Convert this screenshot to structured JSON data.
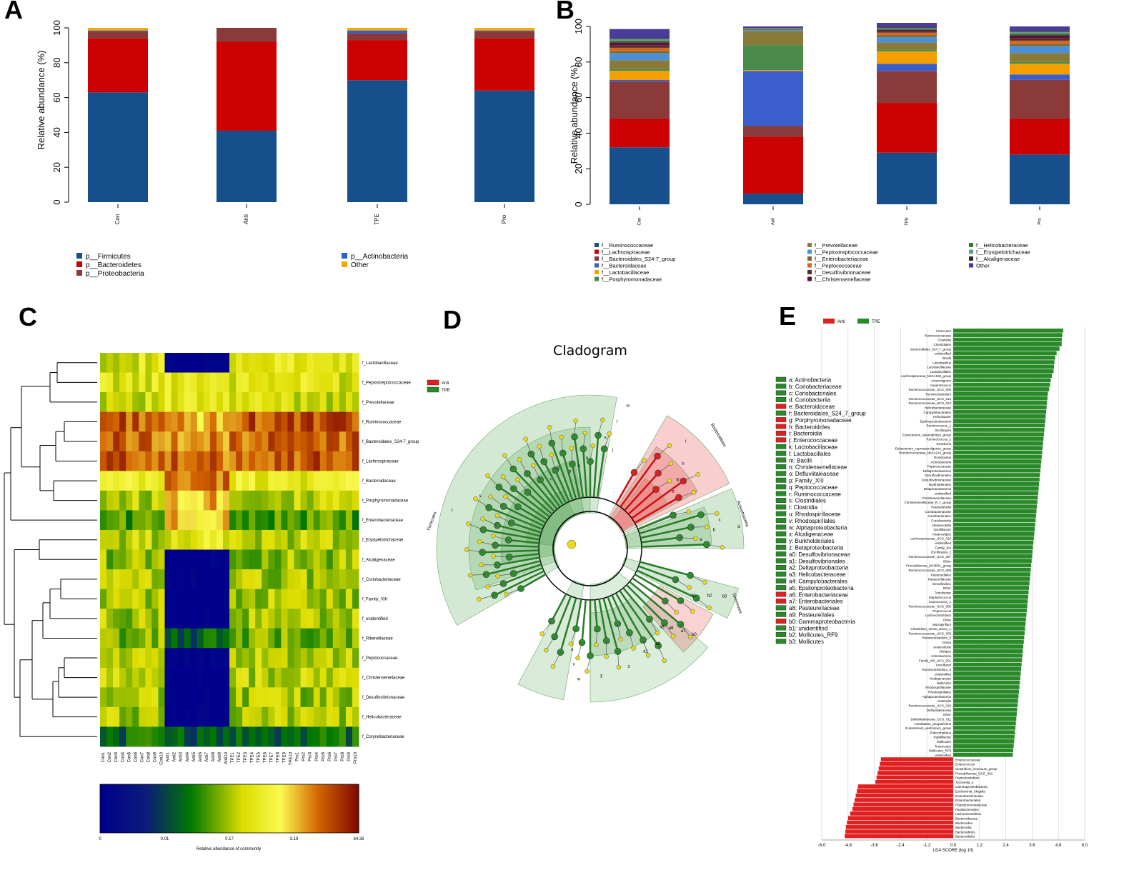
{
  "colors": {
    "Firmicutes": "#174f8c",
    "Bacteroidetes": "#cc0000",
    "Proteobacteria": "#8b3a3a",
    "Actinobacteria": "#2e5fd1",
    "Other": "#f5a800",
    "anti": "#e02020",
    "tpe": "#2a8a2a"
  },
  "chart_data": [
    {
      "id": "A",
      "panel_label": "A",
      "type": "bar",
      "stacked": true,
      "ylabel": "Relative abundance (%)",
      "ylim": [
        0,
        100
      ],
      "yticks": [
        "0",
        "20",
        "40",
        "60",
        "80",
        "100"
      ],
      "categories": [
        "Con",
        "Anti",
        "TPE",
        "Pro"
      ],
      "series": [
        {
          "name": "p__Firmicutes",
          "color": "#174f8c",
          "values": [
            63,
            41,
            70,
            64
          ]
        },
        {
          "name": "p__Bacteroidetes",
          "color": "#cc0000",
          "values": [
            31,
            51,
            23,
            30
          ]
        },
        {
          "name": "p__Proteobacteria",
          "color": "#8b3a3a",
          "values": [
            4,
            8,
            4,
            4
          ]
        },
        {
          "name": "p__Actinobacteria",
          "color": "#2e5fd1",
          "values": [
            0.5,
            0,
            1.5,
            0.5
          ]
        },
        {
          "name": "Other",
          "color": "#f5a800",
          "values": [
            1.5,
            0,
            1.5,
            1.5
          ]
        }
      ],
      "legend_left": [
        "p__Firmicutes",
        "p__Bacteroidetes",
        "p__Proteobacteria"
      ],
      "legend_right": [
        "p__Actinobacteria",
        "Other"
      ]
    },
    {
      "id": "B",
      "panel_label": "B",
      "type": "bar",
      "stacked": true,
      "ylabel": "Relative abundance (%)",
      "ylim": [
        0,
        100
      ],
      "yticks": [
        "0",
        "20",
        "40",
        "60",
        "80",
        "100"
      ],
      "categories": [
        "Con",
        "Anti",
        "TPE",
        "Pro"
      ],
      "series": [
        {
          "name": "f__Ruminococcaceae",
          "color": "#174f8c",
          "values": [
            32,
            6,
            29,
            28
          ]
        },
        {
          "name": "f__Lachnospiraceae",
          "color": "#cc0000",
          "values": [
            16,
            32,
            28,
            20
          ]
        },
        {
          "name": "f__Bacteroidales_S24-7_group",
          "color": "#8b3a3a",
          "values": [
            21,
            6,
            18,
            22
          ]
        },
        {
          "name": "f__Bacteroidaceae",
          "color": "#3a5fcd",
          "values": [
            1,
            31,
            4,
            3
          ]
        },
        {
          "name": "f__Lactobacillaceae",
          "color": "#f5a000",
          "values": [
            5,
            0.5,
            7,
            6
          ]
        },
        {
          "name": "f__Porphyromonadaceae",
          "color": "#4a8a4a",
          "values": [
            1,
            14,
            1,
            1
          ]
        },
        {
          "name": "f__Prevotellaceae",
          "color": "#8a7a3a",
          "values": [
            5,
            8,
            4,
            5
          ]
        },
        {
          "name": "f__Peptostreptococcaceae",
          "color": "#4a90d9",
          "values": [
            4,
            0.5,
            3,
            4
          ]
        },
        {
          "name": "f__Enterobacteriaceae",
          "color": "#7a6a2a",
          "values": [
            1,
            0.5,
            1,
            1
          ]
        },
        {
          "name": "f__Peptococcaceae",
          "color": "#d2691e",
          "values": [
            2,
            0,
            1.5,
            2
          ]
        },
        {
          "name": "f__Desulfovibrionaceae",
          "color": "#5a2a2a",
          "values": [
            1.5,
            0,
            1,
            1.5
          ]
        },
        {
          "name": "f__Christensenellaceae",
          "color": "#5a1040",
          "values": [
            1.5,
            0,
            0.5,
            1.5
          ]
        },
        {
          "name": "f__Helicobacteraceae",
          "color": "#3a7a2a",
          "values": [
            1,
            0,
            0.5,
            1
          ]
        },
        {
          "name": "f__Erysipelotrichaceae",
          "color": "#6a9a8a",
          "values": [
            1,
            0.5,
            0.5,
            1
          ]
        },
        {
          "name": "f__Alcaligenaceae",
          "color": "#2a2a2a",
          "values": [
            0.5,
            0,
            0.5,
            0.5
          ]
        },
        {
          "name": "Other",
          "color": "#4a3a9a",
          "values": [
            5,
            1,
            2.5,
            2.5
          ]
        }
      ],
      "legend_col1": [
        "f__Ruminococcaceae",
        "f__Lachnospiraceae",
        "f__Bacteroidales_S24-7_group",
        "f__Bacteroidaceae",
        "f__Lactobacillaceae",
        "f__Porphyromonadaceae"
      ],
      "legend_col2": [
        "f__Prevotellaceae",
        "f__Peptostreptococcaceae",
        "f__Enterobacteriaceae",
        "f__Peptococcaceae",
        "f__Desulfovibrionaceae",
        "f__Christensenellaceae"
      ],
      "legend_col3": [
        "f__Helicobacteraceae",
        "f__Erysipelotrichaceae",
        "f__Alcaligenaceae",
        "Other"
      ]
    },
    {
      "id": "C",
      "panel_label": "C",
      "type": "heatmap",
      "rows": [
        "f_Lactobacillaceae",
        "f_Peptostreptococcaceae",
        "f_Prevotellaceae",
        "f_Ruminococcaceae",
        "f_Bacteroidales_S24-7_group",
        "f_Lachnospiraceae",
        "f_Bacteroidaceae",
        "f_Porphyromonadaceae",
        "f_Enterobacteriaceae",
        "f_Erysipelotrichaceae",
        "f_Alcaligenaceae",
        "f_Coriobacteriaceae",
        "f_Family_XIII",
        "f_unidentified",
        "f_Rikenellaceae",
        "f_Peptococcaceae",
        "f_Christensenellaceae",
        "f_Desulfovibrionaceae",
        "f_Helicobacteraceae",
        "f_Corynebacteriaceae"
      ],
      "columns": [
        "Con1",
        "Con2",
        "Con3",
        "Con4",
        "Con5",
        "Con6",
        "Con7",
        "Con8",
        "Con9",
        "Con10",
        "Anti1",
        "Anti2",
        "Anti3",
        "Anti4",
        "Anti5",
        "Anti6",
        "Anti7",
        "Anti8",
        "Anti9",
        "Anti10",
        "TPE1",
        "TPE2",
        "TPE3",
        "TPE4",
        "TPE5",
        "TPE6",
        "TPE7",
        "TPE8",
        "TPE9",
        "TPE10",
        "Pro1",
        "Pro2",
        "Pro3",
        "Pro4",
        "Pro5",
        "Pro6",
        "Pro7",
        "Pro8",
        "Pro9",
        "Pro10"
      ],
      "row_base": [
        0.58,
        0.58,
        0.56,
        0.88,
        0.86,
        0.88,
        0.62,
        0.52,
        0.42,
        0.52,
        0.48,
        0.5,
        0.5,
        0.5,
        0.46,
        0.52,
        0.52,
        0.5,
        0.5,
        0.32
      ],
      "anti_base": [
        0.0,
        0.62,
        0.58,
        0.76,
        0.8,
        0.84,
        0.84,
        0.78,
        0.74,
        0.6,
        0.0,
        0.0,
        0.0,
        0.0,
        0.3,
        0.0,
        0.0,
        0.0,
        0.0,
        0.3
      ],
      "colorbar_ticks": [
        "0",
        "0.01",
        "0.17",
        "3.19",
        "64.36"
      ],
      "colorbar_label": "Relative abundance of community"
    },
    {
      "id": "D",
      "panel_label": "D",
      "type": "table",
      "title": "Cladogram",
      "legend": [
        "Anti",
        "TPE"
      ],
      "ring_labels": [
        "Bacteroidetes",
        "Actinobacteria",
        "Tenericutes",
        "Firmicutes"
      ],
      "clade_labels": [
        "i",
        "h",
        "g",
        "e",
        "d",
        "c",
        "b",
        "a",
        "b3",
        "b2",
        "b1",
        "b0",
        "a7",
        "a6",
        "a5",
        "a2",
        "a1",
        "z",
        "y",
        "w",
        "v",
        "u",
        "m",
        "l",
        "k",
        "j",
        "n",
        "o",
        "p",
        "q",
        "r",
        "s",
        "t"
      ],
      "entries": [
        {
          "label": "a: Actinobacteria",
          "group": "TPE"
        },
        {
          "label": "b: Coriobacteriaceae",
          "group": "TPE"
        },
        {
          "label": "c: Coriobacteriales",
          "group": "TPE"
        },
        {
          "label": "d: Coriobacteriia",
          "group": "TPE"
        },
        {
          "label": "e: Bacteroidaceae",
          "group": "Anti"
        },
        {
          "label": "f: Bacteroidales_S24_7_group",
          "group": "TPE"
        },
        {
          "label": "g: Porphyromonadaceae",
          "group": "Anti"
        },
        {
          "label": "h: Bacteroidales",
          "group": "Anti"
        },
        {
          "label": "i: Bacteroidia",
          "group": "Anti"
        },
        {
          "label": "j: Enterococcaceae",
          "group": "Anti"
        },
        {
          "label": "k: Lactobacillaceae",
          "group": "TPE"
        },
        {
          "label": "l: Lactobacillales",
          "group": "TPE"
        },
        {
          "label": "m: Bacilli",
          "group": "TPE"
        },
        {
          "label": "n: Christensenellaceae",
          "group": "TPE"
        },
        {
          "label": "o: Defluviitaleaceae",
          "group": "TPE"
        },
        {
          "label": "p: Family_XIII",
          "group": "TPE"
        },
        {
          "label": "q: Peptococcaceae",
          "group": "TPE"
        },
        {
          "label": "r: Ruminococcaceae",
          "group": "TPE"
        },
        {
          "label": "s: Clostridiales",
          "group": "TPE"
        },
        {
          "label": "t: Clostridia",
          "group": "TPE"
        },
        {
          "label": "u: Rhodospirillaceae",
          "group": "TPE"
        },
        {
          "label": "v: Rhodospirillales",
          "group": "TPE"
        },
        {
          "label": "w: Alphaproteobacteria",
          "group": "TPE"
        },
        {
          "label": "x: Alcaligenaceae",
          "group": "TPE"
        },
        {
          "label": "y: Burkholderiales",
          "group": "TPE"
        },
        {
          "label": "z: Betaproteobacteria",
          "group": "TPE"
        },
        {
          "label": "a0: Desulfovibrionaceae",
          "group": "TPE"
        },
        {
          "label": "a1: Desulfovibrionales",
          "group": "TPE"
        },
        {
          "label": "a2: Deltaproteobacteria",
          "group": "TPE"
        },
        {
          "label": "a3: Helicobacteraceae",
          "group": "TPE"
        },
        {
          "label": "a4: Campylobacterales",
          "group": "TPE"
        },
        {
          "label": "a5: Epsilonproteobacteria",
          "group": "TPE"
        },
        {
          "label": "a6: Enterobacteriaceae",
          "group": "Anti"
        },
        {
          "label": "a7: Enterobacteriales",
          "group": "Anti"
        },
        {
          "label": "a8: Pasteurellaceae",
          "group": "TPE"
        },
        {
          "label": "a9: Pasteurellales",
          "group": "TPE"
        },
        {
          "label": "b0: Gammaproteobacteria",
          "group": "Anti"
        },
        {
          "label": "b1: unidentified",
          "group": "TPE"
        },
        {
          "label": "b2: Mollicutes_RF9",
          "group": "TPE"
        },
        {
          "label": "b3: Mollicutes",
          "group": "TPE"
        }
      ]
    },
    {
      "id": "E",
      "panel_label": "E",
      "type": "bar",
      "orientation": "horizontal",
      "xlabel": "LDA SCORE (log 10)",
      "xlim": [
        -6.0,
        6.0
      ],
      "xticks": [
        "-6.0",
        "-4.8",
        "-3.6",
        "-2.4",
        "-1.2",
        "0.0",
        "1.2",
        "2.4",
        "3.6",
        "4.8",
        "6.0"
      ],
      "legend": [
        "Anti",
        "TPE"
      ],
      "tpe_labels": [
        "Firmicutes",
        "Ruminococcaceae",
        "Clostridia",
        "Clostridiales",
        "Bacteroidales_S24_7_group",
        "unidentified",
        "Bacilli",
        "Lactobacillus",
        "Lactobacillaceae",
        "Lactobacillales",
        "Lachnospiraceae_NK4A136_group",
        "Anaerotignum",
        "Anaerotruncus",
        "Ruminococcaceae_UCG_005",
        "Ruminiclostridium",
        "Ruminococcaceae_UCG_013",
        "Ruminococcaceae_UCG_014",
        "Helicobacteraceae",
        "Campylobacterales",
        "Helicobacter",
        "Epsilonproteobacteria",
        "Ruminococcus_1",
        "Oscillospira",
        "Eubacterium_xylanophilum_group",
        "Ruminococcus_2",
        "Roseburia",
        "Eubacterium_coprostanoligenes_group",
        "Ruminococcaceae_NK4A214_group",
        "Romboutsia",
        "Actinobacteria",
        "Peptococcaceae",
        "Deltaproteobacteria",
        "Desulfovibrionales",
        "Desulfovibrionaceae",
        "Burkholderiales",
        "Betaproteobacteria",
        "unidentified",
        "Christensenellaceae",
        "Christensenellaceae_R_7_group",
        "Parasutterella",
        "Coriobacteriaceae",
        "Coriobacteriales",
        "Coriobacteriia",
        "Alloprevotella",
        "Oscillibacter",
        "Anaerostipes",
        "Lachnospiraceae_UCG_010",
        "unidentified",
        "Family_XIII",
        "Oscillospira_2",
        "Ruminococcaceae_UCG_007",
        "Other",
        "Prevotellaceae_NK3B31_group",
        "Ruminococcaceae_UCG_009",
        "Pasteurellales",
        "Pasteurellaceae",
        "Desulfovibrio",
        "Other",
        "Turicibacter",
        "Staphylococcus",
        "Coprococcus_1",
        "Ruminococcaceae_UCG_008",
        "Peptococcus",
        "Lachnoclostridium",
        "Other",
        "Mucispirillum",
        "Clostridium_sensu_stricto_1",
        "Ruminococcaceae_UCG_003",
        "Ruminiclostridium_5",
        "Dorea",
        "Anaerofustis",
        "Alistipes",
        "Actinobacteria",
        "Family_XIII_UCG_001",
        "uncultured",
        "Ruminiclostridium_6",
        "unidentified",
        "Alcaligenaceae",
        "Mollicutes",
        "Rhodospirillaceae",
        "Rhodospirillales",
        "Alphaproteobacteria",
        "Sutterella",
        "Ruminococcaceae_UCG_010",
        "Defluviitaleaceae",
        "Other",
        "Defluviitaleaceae_UCG_011",
        "Candidatus_Stoquefichus",
        "Eubacterium_ventriosum_group",
        "Enterorhabdus",
        "Papillibacter",
        "Mollicutes",
        "Tenericutes",
        "Mollicutes_RF9",
        "unidentified"
      ],
      "anti_labels": [
        "Enterococcaceae",
        "Enterococcus",
        "Clostridium_innocuum_group",
        "Prevotellaceae_UCG_001",
        "Peptoclostridium",
        "Tyzzerella_4",
        "Gammaproteobacteria",
        "Escherichia_Shigella",
        "Enterobacteriaceae",
        "Enterobacteriales",
        "Porphyromonadaceae",
        "Parabacteroides",
        "Lachnoclostridium",
        "Bacteroidaceae",
        "Bacteroides",
        "Bacteroidia",
        "Bacteroidetes",
        "Bacteroidales"
      ],
      "tpe_values": [
        5.02,
        4.98,
        4.96,
        4.95,
        4.85,
        4.72,
        4.65,
        4.62,
        4.6,
        4.58,
        4.5,
        4.45,
        4.42,
        4.38,
        4.32,
        4.3,
        4.28,
        4.26,
        4.24,
        4.22,
        4.2,
        4.18,
        4.16,
        4.14,
        4.12,
        4.1,
        4.08,
        4.06,
        4.04,
        4.02,
        4.0,
        3.98,
        3.96,
        3.94,
        3.92,
        3.9,
        3.88,
        3.86,
        3.84,
        3.82,
        3.8,
        3.78,
        3.76,
        3.74,
        3.72,
        3.7,
        3.68,
        3.66,
        3.64,
        3.62,
        3.6,
        3.58,
        3.56,
        3.54,
        3.52,
        3.5,
        3.48,
        3.46,
        3.44,
        3.42,
        3.4,
        3.38,
        3.36,
        3.34,
        3.32,
        3.3,
        3.28,
        3.26,
        3.24,
        3.22,
        3.2,
        3.18,
        3.16,
        3.14,
        3.12,
        3.1,
        3.08,
        3.06,
        3.04,
        3.02,
        3.0,
        2.98,
        2.96,
        2.94,
        2.92,
        2.9,
        2.88,
        2.86,
        2.84,
        2.82,
        2.8,
        2.78,
        2.76,
        2.74,
        2.72
      ],
      "anti_values": [
        -3.3,
        -3.35,
        -3.4,
        -3.45,
        -3.5,
        -3.55,
        -4.35,
        -4.4,
        -4.45,
        -4.5,
        -4.55,
        -4.6,
        -4.7,
        -4.8,
        -4.85,
        -4.9,
        -4.92,
        -4.95
      ]
    }
  ]
}
